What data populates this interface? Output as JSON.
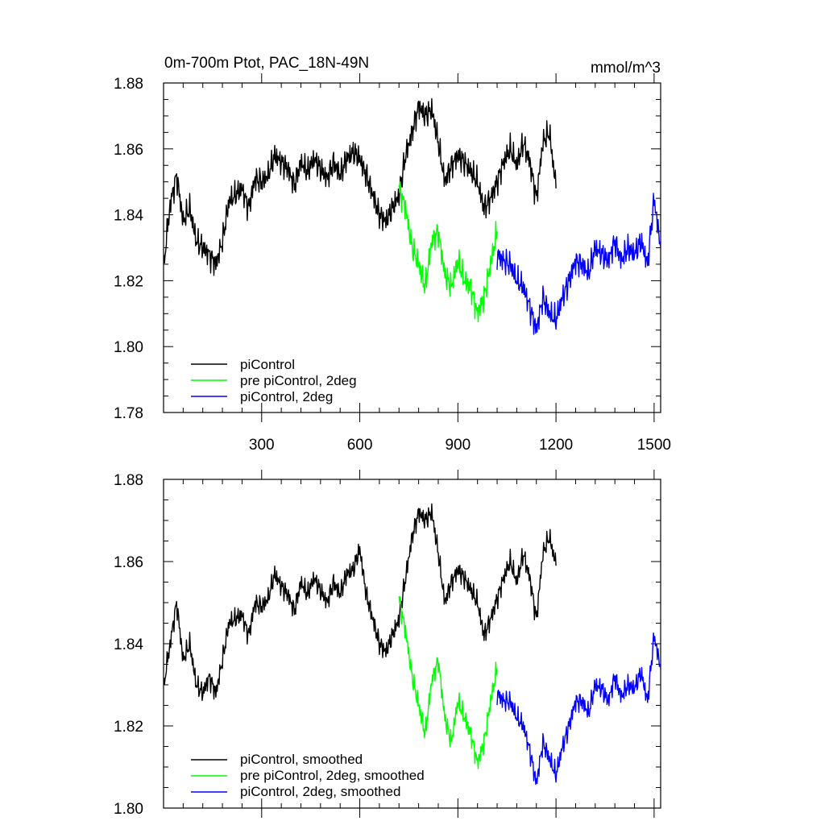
{
  "chart_data": [
    {
      "type": "line",
      "title": "0m-700m Ptot, PAC_18N-49N",
      "units": "mmol/m^3",
      "xlabel": "",
      "ylabel": "",
      "xlim": [
        0,
        1520
      ],
      "ylim": [
        1.78,
        1.88
      ],
      "x_ticks": [
        300,
        600,
        900,
        1200,
        1500
      ],
      "y_ticks": [
        1.78,
        1.8,
        1.82,
        1.84,
        1.86,
        1.88
      ],
      "legend_position": "bottom-left",
      "series": [
        {
          "name": "piControl",
          "color": "#000000",
          "x": [
            1,
            20,
            40,
            60,
            80,
            100,
            120,
            140,
            160,
            180,
            200,
            220,
            240,
            260,
            280,
            300,
            320,
            340,
            360,
            380,
            400,
            420,
            440,
            460,
            480,
            500,
            520,
            540,
            560,
            580,
            600,
            620,
            640,
            660,
            680,
            700,
            720,
            740,
            760,
            780,
            800,
            820,
            840,
            860,
            880,
            900,
            920,
            940,
            960,
            980,
            1000,
            1020,
            1040,
            1060,
            1080,
            1100,
            1120,
            1140,
            1160,
            1180,
            1200
          ],
          "values": [
            1.825,
            1.843,
            1.852,
            1.838,
            1.842,
            1.832,
            1.83,
            1.828,
            1.825,
            1.832,
            1.844,
            1.846,
            1.848,
            1.842,
            1.851,
            1.85,
            1.852,
            1.858,
            1.856,
            1.854,
            1.849,
            1.856,
            1.853,
            1.857,
            1.854,
            1.851,
            1.856,
            1.852,
            1.857,
            1.859,
            1.857,
            1.852,
            1.846,
            1.84,
            1.838,
            1.842,
            1.846,
            1.858,
            1.865,
            1.873,
            1.87,
            1.872,
            1.862,
            1.85,
            1.855,
            1.858,
            1.856,
            1.853,
            1.85,
            1.842,
            1.845,
            1.85,
            1.856,
            1.86,
            1.855,
            1.862,
            1.856,
            1.845,
            1.862,
            1.865,
            1.848
          ]
        },
        {
          "name": "pre piControl, 2deg",
          "color": "#00ff00",
          "x": [
            720,
            740,
            760,
            780,
            800,
            820,
            840,
            860,
            880,
            900,
            920,
            940,
            960,
            980,
            1000,
            1020
          ],
          "values": [
            1.848,
            1.842,
            1.83,
            1.825,
            1.818,
            1.832,
            1.835,
            1.822,
            1.818,
            1.826,
            1.82,
            1.818,
            1.81,
            1.815,
            1.825,
            1.835
          ]
        },
        {
          "name": "piControl, 2deg",
          "color": "#0000ff",
          "x": [
            1020,
            1040,
            1060,
            1080,
            1100,
            1120,
            1140,
            1160,
            1180,
            1200,
            1220,
            1240,
            1260,
            1280,
            1300,
            1320,
            1340,
            1360,
            1380,
            1400,
            1420,
            1440,
            1460,
            1480,
            1500,
            1520
          ],
          "values": [
            1.828,
            1.826,
            1.825,
            1.82,
            1.818,
            1.812,
            1.805,
            1.815,
            1.81,
            1.808,
            1.815,
            1.82,
            1.826,
            1.825,
            1.822,
            1.83,
            1.828,
            1.826,
            1.832,
            1.826,
            1.83,
            1.828,
            1.832,
            1.825,
            1.845,
            1.83
          ]
        }
      ]
    },
    {
      "type": "line",
      "title": "",
      "xlabel": "",
      "ylabel": "",
      "xlim": [
        0,
        1520
      ],
      "ylim": [
        1.8,
        1.88
      ],
      "y_ticks": [
        1.8,
        1.82,
        1.84,
        1.86,
        1.88
      ],
      "legend_position": "bottom-left",
      "series": [
        {
          "name": "piControl, smoothed",
          "color": "#000000",
          "x": [
            1,
            20,
            40,
            60,
            80,
            100,
            120,
            140,
            160,
            180,
            200,
            220,
            240,
            260,
            280,
            300,
            320,
            340,
            360,
            380,
            400,
            420,
            440,
            460,
            480,
            500,
            520,
            540,
            560,
            580,
            600,
            620,
            640,
            660,
            680,
            700,
            720,
            740,
            760,
            780,
            800,
            820,
            840,
            860,
            880,
            900,
            920,
            940,
            960,
            980,
            1000,
            1020,
            1040,
            1060,
            1080,
            1100,
            1120,
            1140,
            1160,
            1180,
            1200
          ],
          "values": [
            1.83,
            1.84,
            1.85,
            1.836,
            1.84,
            1.83,
            1.828,
            1.832,
            1.828,
            1.836,
            1.845,
            1.846,
            1.847,
            1.842,
            1.85,
            1.849,
            1.851,
            1.857,
            1.854,
            1.852,
            1.848,
            1.855,
            1.852,
            1.856,
            1.853,
            1.85,
            1.855,
            1.852,
            1.857,
            1.858,
            1.863,
            1.852,
            1.846,
            1.84,
            1.838,
            1.842,
            1.846,
            1.856,
            1.866,
            1.872,
            1.87,
            1.872,
            1.862,
            1.85,
            1.855,
            1.858,
            1.856,
            1.853,
            1.85,
            1.842,
            1.846,
            1.851,
            1.856,
            1.86,
            1.855,
            1.862,
            1.856,
            1.846,
            1.862,
            1.866,
            1.859
          ]
        },
        {
          "name": "pre piControl, 2deg, smoothed",
          "color": "#00ff00",
          "x": [
            720,
            740,
            760,
            780,
            800,
            820,
            840,
            860,
            880,
            900,
            920,
            940,
            960,
            980,
            1000,
            1020
          ],
          "values": [
            1.851,
            1.843,
            1.832,
            1.825,
            1.818,
            1.831,
            1.836,
            1.822,
            1.816,
            1.826,
            1.822,
            1.818,
            1.811,
            1.816,
            1.826,
            1.834
          ]
        },
        {
          "name": "piControl, 2deg, smoothed",
          "color": "#0000ff",
          "x": [
            1020,
            1040,
            1060,
            1080,
            1100,
            1120,
            1140,
            1160,
            1180,
            1200,
            1220,
            1240,
            1260,
            1280,
            1300,
            1320,
            1340,
            1360,
            1380,
            1400,
            1420,
            1440,
            1460,
            1480,
            1500,
            1520
          ],
          "values": [
            1.828,
            1.826,
            1.826,
            1.822,
            1.82,
            1.814,
            1.806,
            1.816,
            1.812,
            1.808,
            1.815,
            1.82,
            1.826,
            1.826,
            1.823,
            1.83,
            1.829,
            1.826,
            1.832,
            1.827,
            1.83,
            1.829,
            1.833,
            1.826,
            1.842,
            1.834
          ]
        }
      ]
    }
  ]
}
